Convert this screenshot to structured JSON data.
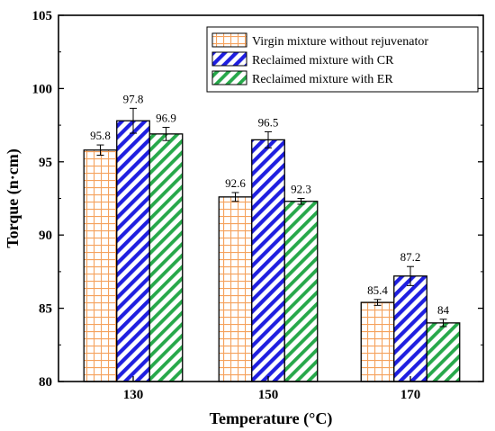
{
  "chart_data": {
    "type": "bar",
    "xlabel": "Temperature (°C)",
    "ylabel": "Torque (n·cm)",
    "ylim": [
      80,
      105
    ],
    "yticks": [
      80,
      85,
      90,
      95,
      100,
      105
    ],
    "categories": [
      "130",
      "150",
      "170"
    ],
    "legend_position": "top-right",
    "series": [
      {
        "name": "Virgin mixture without rejuvenator",
        "values": [
          95.8,
          92.6,
          85.4
        ],
        "labels": [
          "95.8",
          "92.6",
          "85.4"
        ],
        "errors": [
          0.35,
          0.3,
          0.2
        ],
        "color": "#f5a25d",
        "pattern": "grid"
      },
      {
        "name": "Reclaimed mixture with CR",
        "values": [
          97.8,
          96.5,
          87.2
        ],
        "labels": [
          "97.8",
          "96.5",
          "87.2"
        ],
        "errors": [
          0.85,
          0.55,
          0.65
        ],
        "color": "#1f1fe0",
        "pattern": "diagonal"
      },
      {
        "name": "Reclaimed mixture with ER",
        "values": [
          96.9,
          92.3,
          84.0
        ],
        "labels": [
          "96.9",
          "92.3",
          "84"
        ],
        "errors": [
          0.45,
          0.2,
          0.25
        ],
        "color": "#27a84a",
        "pattern": "diagonal"
      }
    ]
  }
}
